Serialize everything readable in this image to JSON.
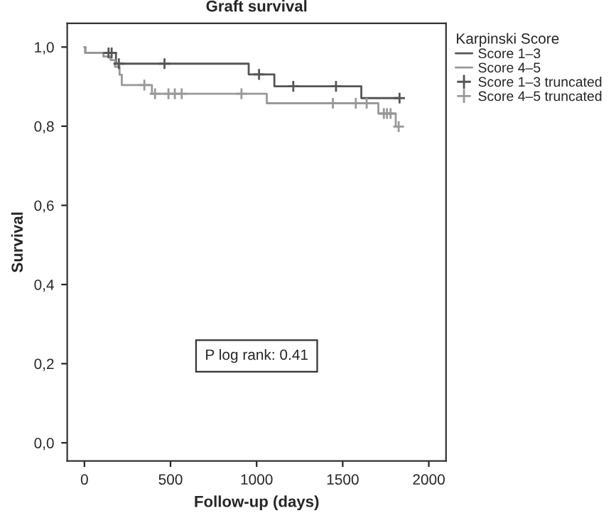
{
  "chart_data": {
    "type": "step",
    "title": "Graft survival",
    "xlabel": "Follow-up (days)",
    "ylabel": "Survival",
    "legend_title": "Karpinski Score",
    "series": [
      {
        "name": "Score 1–3",
        "color": "#555555",
        "x": [
          0,
          5,
          183,
          954,
          1103,
          1608,
          1830
        ],
        "values": [
          1.0,
          0.985,
          0.958,
          0.931,
          0.901,
          0.871,
          0.871
        ]
      },
      {
        "name": "Score 4–5",
        "color": "#999999",
        "x": [
          0,
          5,
          110,
          152,
          178,
          204,
          217,
          392,
          1059,
          1707,
          1808,
          1830
        ],
        "values": [
          1.0,
          0.985,
          0.976,
          0.967,
          0.95,
          0.93,
          0.904,
          0.882,
          0.858,
          0.832,
          0.799,
          0.799
        ]
      },
      {
        "name": "Score 1–3 truncated",
        "type": "scatter",
        "marker": "cross",
        "color": "#555555",
        "x": [
          140,
          158,
          200,
          465,
          1014,
          1213,
          1461,
          1830
        ],
        "values": [
          0.985,
          0.985,
          0.958,
          0.958,
          0.931,
          0.901,
          0.901,
          0.871
        ]
      },
      {
        "name": "Score 4–5 truncated",
        "type": "scatter",
        "marker": "cross",
        "color": "#999999",
        "x": [
          348,
          410,
          488,
          525,
          565,
          912,
          1443,
          1576,
          1639,
          1739,
          1757,
          1778,
          1825
        ],
        "values": [
          0.904,
          0.882,
          0.882,
          0.882,
          0.882,
          0.882,
          0.858,
          0.858,
          0.858,
          0.832,
          0.832,
          0.832,
          0.799
        ]
      }
    ],
    "xlim": [
      -100,
      2100
    ],
    "xticks": [
      0,
      500,
      1000,
      1500,
      2000
    ],
    "ylim": [
      -0.046,
      1.06
    ],
    "yticks": [
      {
        "value": 0.0,
        "label": "0,0"
      },
      {
        "value": 0.2,
        "label": "0,2"
      },
      {
        "value": 0.4,
        "label": "0,4"
      },
      {
        "value": 0.6,
        "label": "0,6"
      },
      {
        "value": 0.8,
        "label": "0,8"
      },
      {
        "value": 1.0,
        "label": "1,0"
      }
    ],
    "annotations": [
      "P log rank: 0.41"
    ],
    "grid": false,
    "legend": "top right"
  }
}
